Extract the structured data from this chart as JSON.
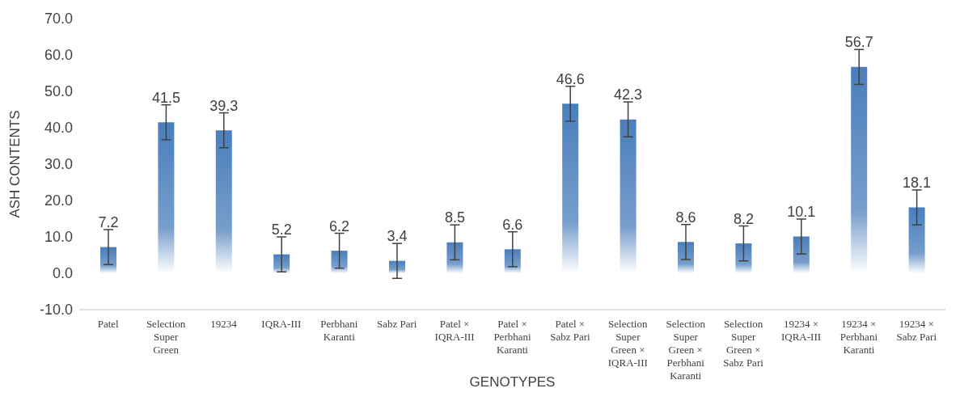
{
  "chart_data": {
    "type": "bar",
    "xlabel": "GENOTYPES",
    "ylabel": "ASH CONTENTS",
    "categories": [
      "Patel",
      "Selection Super Green",
      "19234",
      "IQRA-III",
      "Perbhani Karanti",
      "Sabz Pari",
      "Patel × IQRA-III",
      "Patel × Perbhani Karanti",
      "Patel × Sabz Pari",
      "Selection Super Green × IQRA-III",
      "Selection Super Green × Perbhani Karanti",
      "Selection Super Green × Sabz Pari",
      "19234 × IQRA-III",
      "19234 × Perbhani Karanti",
      "19234 × Sabz Pari"
    ],
    "values": [
      7.2,
      41.5,
      39.3,
      5.2,
      6.2,
      3.4,
      8.5,
      6.6,
      46.6,
      42.3,
      8.6,
      8.2,
      10.1,
      56.7,
      18.1
    ],
    "errors": [
      4.8,
      4.8,
      4.8,
      4.8,
      4.8,
      4.8,
      4.8,
      4.8,
      4.8,
      4.8,
      4.8,
      4.8,
      4.8,
      4.8,
      4.8
    ],
    "color": "#4a7ebb",
    "data_labels": true,
    "grid": false,
    "legend": false,
    "ylim": [
      -10,
      70
    ],
    "yticks": [
      {
        "value": -10,
        "label": "-10.0"
      },
      {
        "value": 0,
        "label": "0.0"
      },
      {
        "value": 10,
        "label": "10.0"
      },
      {
        "value": 20,
        "label": "20.0"
      },
      {
        "value": 30,
        "label": "30.0"
      },
      {
        "value": 40,
        "label": "40.0"
      },
      {
        "value": 50,
        "label": "50.0"
      },
      {
        "value": 60,
        "label": "60.0"
      },
      {
        "value": 70,
        "label": "70.0"
      }
    ]
  }
}
